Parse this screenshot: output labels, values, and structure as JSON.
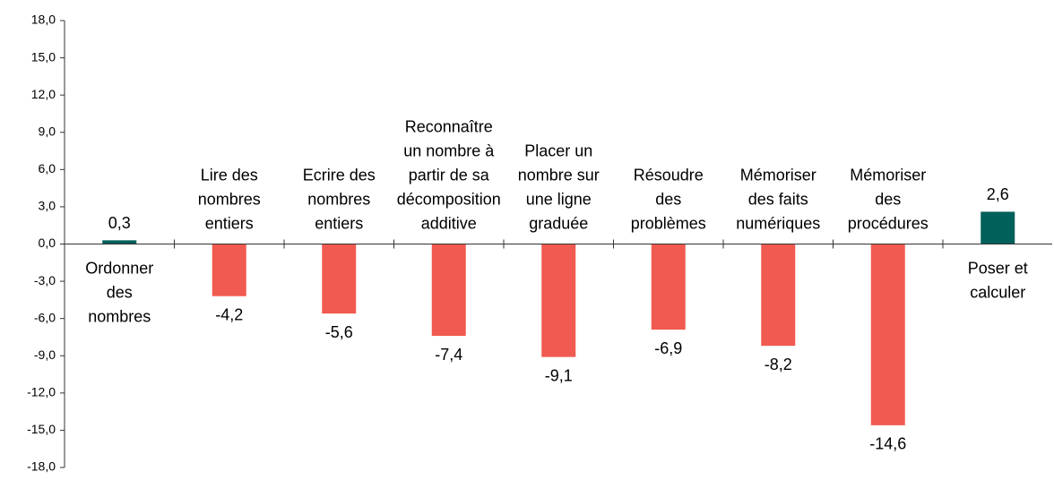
{
  "chart_data": {
    "type": "bar",
    "categories": [
      [
        "Ordonner",
        "des",
        "nombres"
      ],
      [
        "Lire des",
        "nombres",
        "entiers"
      ],
      [
        "Ecrire des",
        "nombres",
        "entiers"
      ],
      [
        "Reconnaître",
        "un nombre à",
        "partir de sa",
        "décomposition",
        "additive"
      ],
      [
        "Placer un",
        "nombre sur",
        "une ligne",
        "graduée"
      ],
      [
        "Résoudre",
        "des",
        "problèmes"
      ],
      [
        "Mémoriser",
        "des faits",
        "numériques"
      ],
      [
        "Mémoriser",
        "des",
        "procédures"
      ],
      [
        "Poser et",
        "calculer"
      ]
    ],
    "values": [
      0.3,
      -4.2,
      -5.6,
      -7.4,
      -9.1,
      -6.9,
      -8.2,
      -14.6,
      2.6
    ],
    "value_labels": [
      "0,3",
      "-4,2",
      "-5,6",
      "-7,4",
      "-9,1",
      "-6,9",
      "-8,2",
      "-14,6",
      "2,6"
    ],
    "colors": [
      "#00605a",
      "#f15a50",
      "#f15a50",
      "#f15a50",
      "#f15a50",
      "#f15a50",
      "#f15a50",
      "#f15a50",
      "#00605a"
    ],
    "ylim": [
      -18,
      18
    ],
    "yticks": [
      {
        "value": -18,
        "label": "-18,0"
      },
      {
        "value": -15,
        "label": "-15,0"
      },
      {
        "value": -12,
        "label": "-12,0"
      },
      {
        "value": -9,
        "label": "-9,0"
      },
      {
        "value": -6,
        "label": "-6,0"
      },
      {
        "value": -3,
        "label": "-3,0"
      },
      {
        "value": 0,
        "label": "0,0"
      },
      {
        "value": 3,
        "label": "3,0"
      },
      {
        "value": 6,
        "label": "6,0"
      },
      {
        "value": 9,
        "label": "9,0"
      },
      {
        "value": 12,
        "label": "12,0"
      },
      {
        "value": 15,
        "label": "15,0"
      },
      {
        "value": 18,
        "label": "18,0"
      }
    ]
  }
}
